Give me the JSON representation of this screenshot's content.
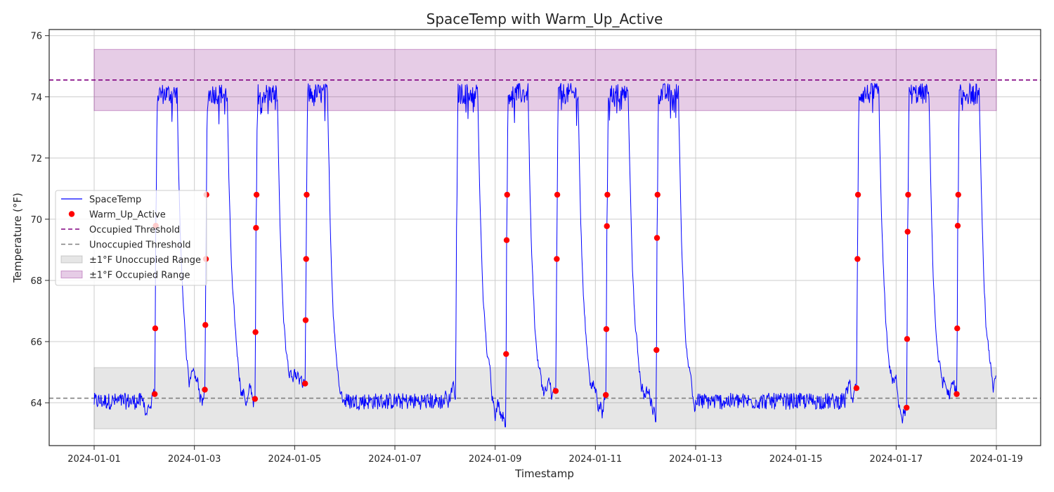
{
  "chart_data": {
    "type": "line",
    "title": "SpaceTemp with Warm_Up_Active",
    "xlabel": "Timestamp",
    "ylabel": "Temperature (°F)",
    "xlim": [
      "2024-01-01",
      "2024-01-19"
    ],
    "ylim": [
      62.6,
      76.2
    ],
    "grid": true,
    "legend_position": "center-left",
    "x_ticks": [
      "2024-01-01",
      "2024-01-03",
      "2024-01-05",
      "2024-01-07",
      "2024-01-09",
      "2024-01-11",
      "2024-01-13",
      "2024-01-15",
      "2024-01-17",
      "2024-01-19"
    ],
    "y_ticks": [
      64,
      66,
      68,
      70,
      72,
      74,
      76
    ],
    "thresholds": {
      "occupied": 74.55,
      "unoccupied": 64.15
    },
    "bands": [
      {
        "name": "±1°F Unoccupied Range",
        "from": 63.15,
        "to": 65.15,
        "x_start": "2024-01-01",
        "x_end": "2024-01-19",
        "color": "#808080"
      },
      {
        "name": "±1°F Occupied Range",
        "from": 73.55,
        "to": 75.55,
        "x_start": "2024-01-01",
        "x_end": "2024-01-19",
        "color": "#800080"
      }
    ],
    "series": [
      {
        "name": "SpaceTemp",
        "kind": "line",
        "color": "#0000ff"
      },
      {
        "name": "Warm_Up_Active",
        "kind": "scatter",
        "color": "#ff0000"
      },
      {
        "name": "Occupied Threshold",
        "kind": "hline-dashed",
        "color": "#800080"
      },
      {
        "name": "Unoccupied Threshold",
        "kind": "hline-dashed",
        "color": "#808080"
      }
    ],
    "days": [
      {
        "date": "2024-01-01",
        "warmup": false,
        "occupied": false
      },
      {
        "date": "2024-01-02",
        "warmup": true,
        "occupied": true
      },
      {
        "date": "2024-01-03",
        "warmup": true,
        "occupied": true
      },
      {
        "date": "2024-01-04",
        "warmup": true,
        "occupied": true
      },
      {
        "date": "2024-01-05",
        "warmup": true,
        "occupied": true
      },
      {
        "date": "2024-01-06",
        "warmup": false,
        "occupied": false
      },
      {
        "date": "2024-01-07",
        "warmup": false,
        "occupied": false
      },
      {
        "date": "2024-01-08",
        "warmup": false,
        "occupied": true
      },
      {
        "date": "2024-01-09",
        "warmup": true,
        "occupied": true
      },
      {
        "date": "2024-01-10",
        "warmup": true,
        "occupied": true
      },
      {
        "date": "2024-01-11",
        "warmup": true,
        "occupied": true
      },
      {
        "date": "2024-01-12",
        "warmup": true,
        "occupied": true
      },
      {
        "date": "2024-01-13",
        "warmup": false,
        "occupied": false
      },
      {
        "date": "2024-01-14",
        "warmup": false,
        "occupied": false
      },
      {
        "date": "2024-01-15",
        "warmup": false,
        "occupied": false
      },
      {
        "date": "2024-01-16",
        "warmup": true,
        "occupied": true
      },
      {
        "date": "2024-01-17",
        "warmup": true,
        "occupied": true
      },
      {
        "date": "2024-01-18",
        "warmup": true,
        "occupied": true
      }
    ],
    "space_temp_baseline": 64.05,
    "space_temp_occupied_level": 74.1
  }
}
